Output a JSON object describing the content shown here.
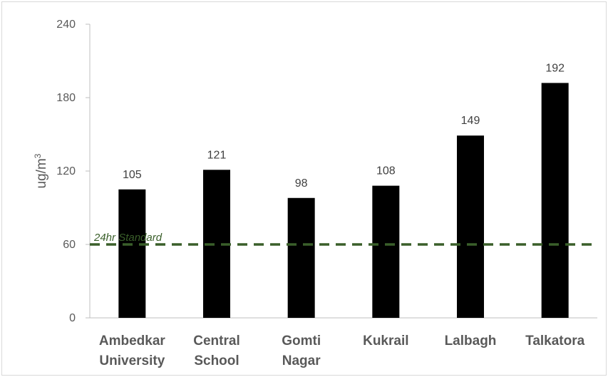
{
  "chart_data": {
    "type": "bar",
    "categories": [
      [
        "Ambedkar",
        "University"
      ],
      [
        "Central",
        "School"
      ],
      [
        "Gomti",
        "Nagar"
      ],
      [
        "Kukrail"
      ],
      [
        "Lalbagh"
      ],
      [
        "Talkatora"
      ]
    ],
    "values": [
      105,
      121,
      98,
      108,
      149,
      192
    ],
    "ylabel": "ug/m",
    "ylabel_superscript": "3",
    "ylim": [
      0,
      240
    ],
    "yticks": [
      0,
      60,
      120,
      180,
      240
    ],
    "reference_line": {
      "value": 60,
      "label": "24hr Standard",
      "color": "#3a5f2a",
      "style": "dashed"
    },
    "bar_color": "#000000",
    "data_labels": true,
    "grid": false
  }
}
